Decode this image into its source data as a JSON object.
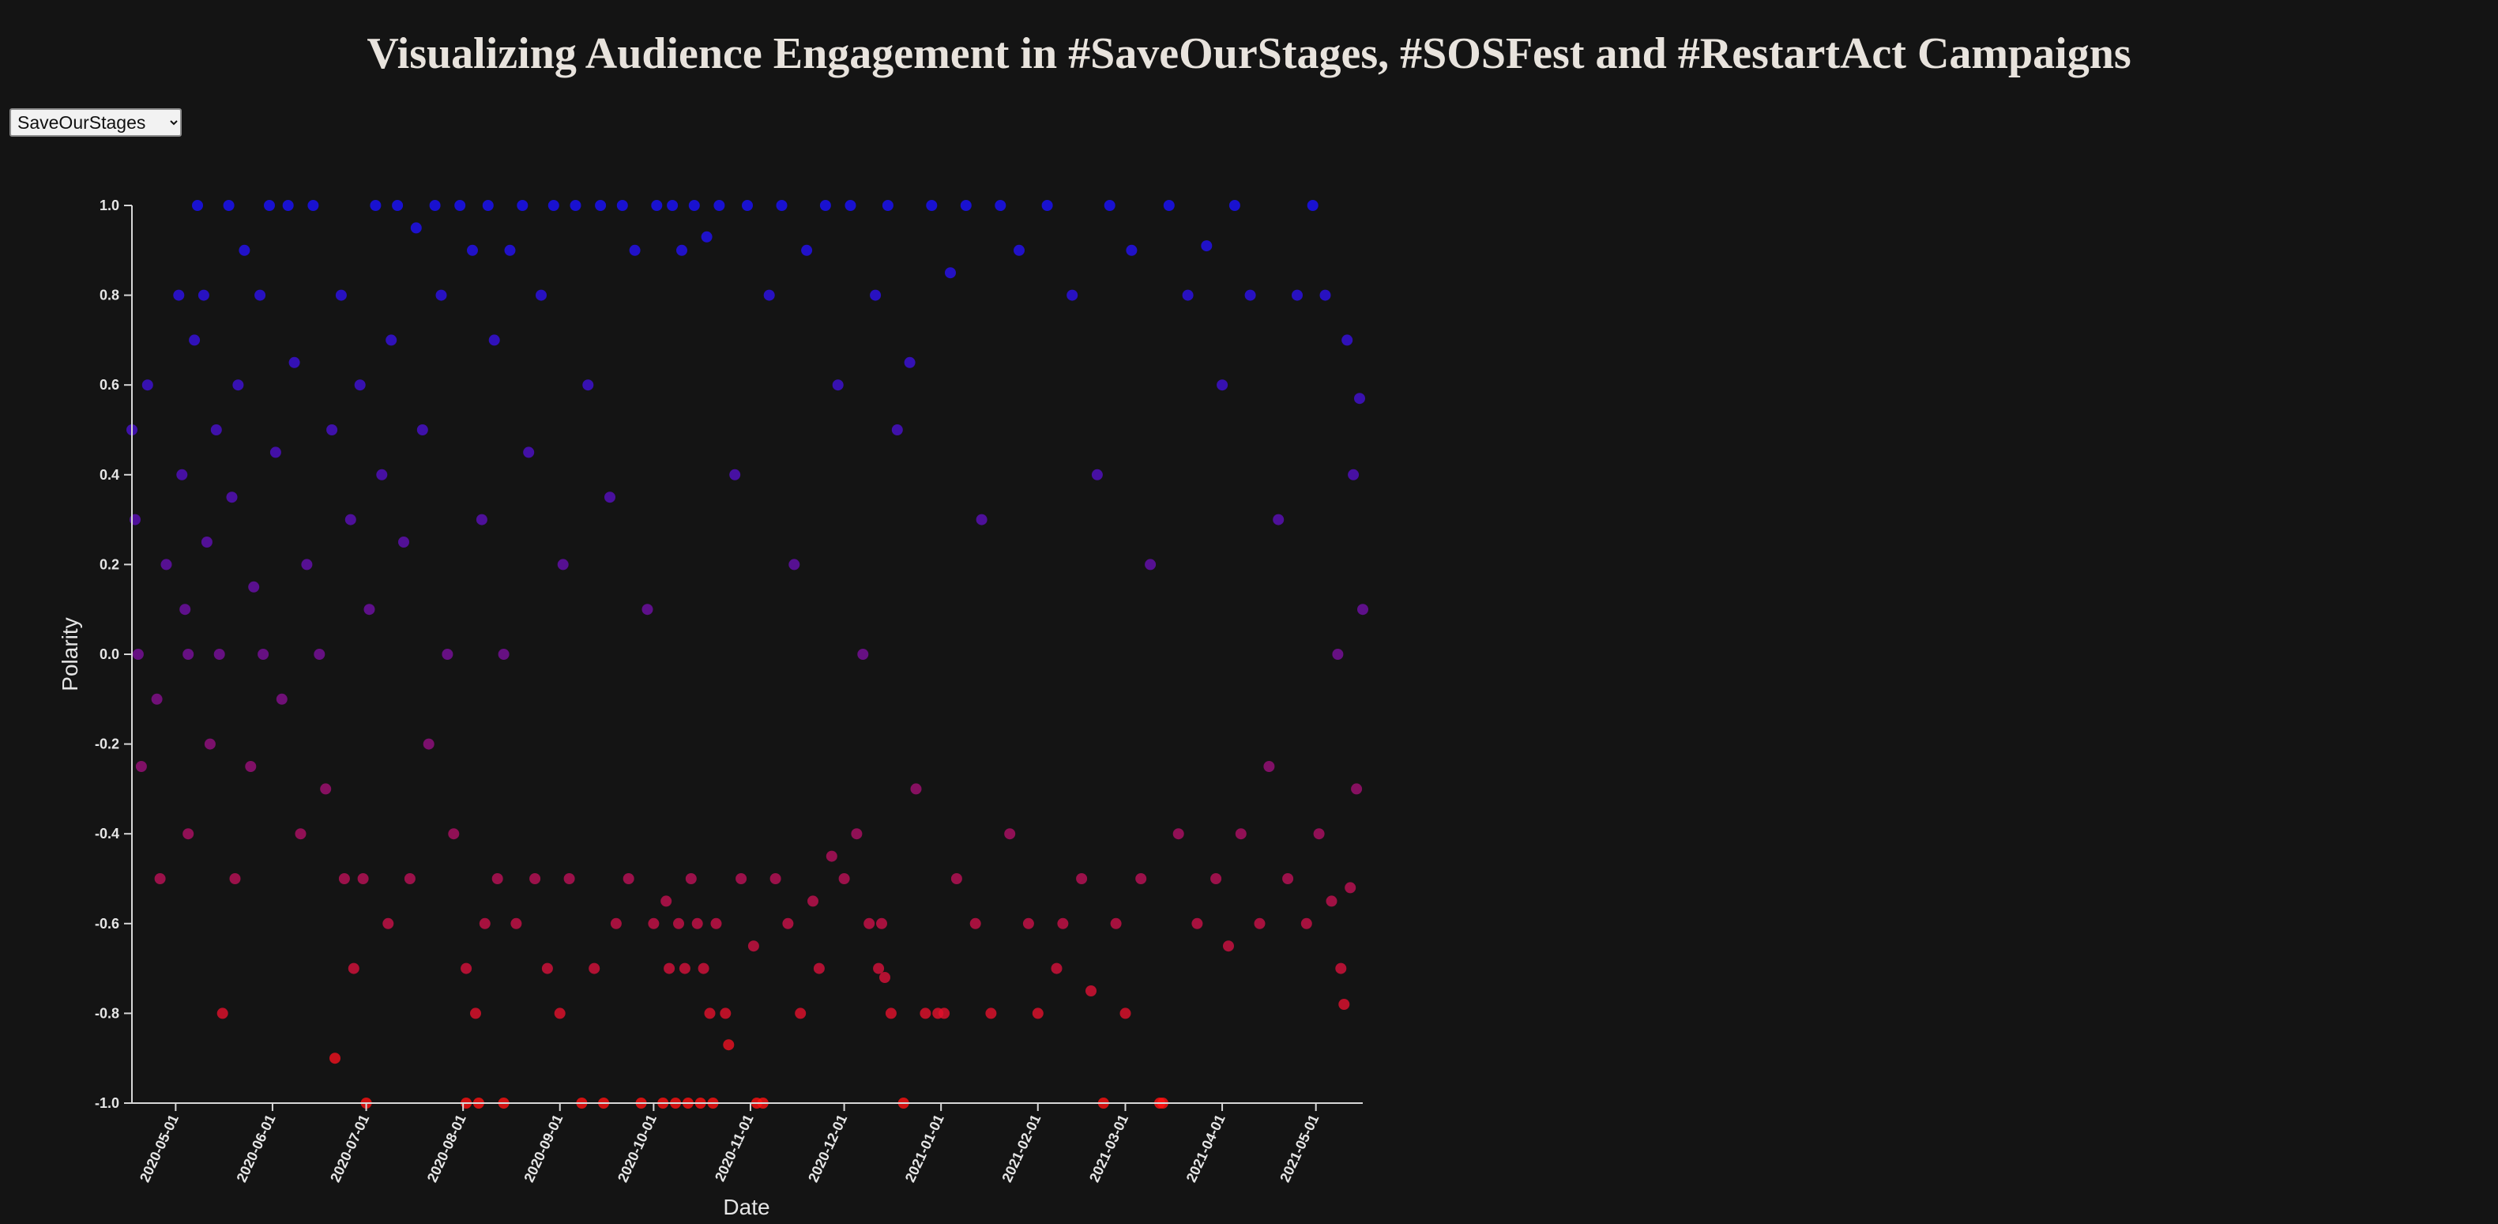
{
  "page": {
    "title": "Visualizing Audience Engagement in #SaveOurStages, #SOSFest and #RestartAct Campaigns"
  },
  "campaign_select": {
    "selected": "SaveOurStages"
  },
  "colors": {
    "background": "#141414",
    "positive_end": "#1a10ff",
    "neutral_mid": "#7a0f9e",
    "negative_end": "#ff1010"
  },
  "chart_data": {
    "type": "scatter",
    "xlabel": "Date",
    "ylabel": "Polarity",
    "x_axis_type": "date",
    "xlim": [
      "2020-04-17",
      "2021-05-16"
    ],
    "ylim": [
      -1.0,
      1.0
    ],
    "y_ticks": [
      1.0,
      0.8,
      0.6,
      0.4,
      0.2,
      0.0,
      -0.2,
      -0.4,
      -0.6,
      -0.8,
      -1.0
    ],
    "y_tick_labels": [
      "1.0",
      "0.8",
      "0.6",
      "0.4",
      "0.2",
      "0.0",
      "-0.2",
      "-0.4",
      "-0.6",
      "-0.8",
      "-1.0"
    ],
    "x_ticks": [
      "2020-05-01",
      "2020-06-01",
      "2020-07-01",
      "2020-08-01",
      "2020-09-01",
      "2020-10-01",
      "2020-11-01",
      "2020-12-01",
      "2021-01-01",
      "2021-02-01",
      "2021-03-01",
      "2021-04-01",
      "2021-05-01"
    ],
    "grid": false,
    "legend": "none",
    "color_encoding": "polarity gradient: red at -1.0, purple near 0.0, blue at 1.0",
    "point_opacity": 0.8,
    "points": [
      {
        "x": "2020-04-17",
        "y": 0.5
      },
      {
        "x": "2020-04-18",
        "y": 0.3
      },
      {
        "x": "2020-04-19",
        "y": 0.0
      },
      {
        "x": "2020-04-20",
        "y": -0.25
      },
      {
        "x": "2020-04-22",
        "y": 0.6
      },
      {
        "x": "2020-04-25",
        "y": -0.1
      },
      {
        "x": "2020-04-26",
        "y": -0.5
      },
      {
        "x": "2020-04-28",
        "y": 0.2
      },
      {
        "x": "2020-05-02",
        "y": 0.8
      },
      {
        "x": "2020-05-03",
        "y": 0.4
      },
      {
        "x": "2020-05-04",
        "y": 0.1
      },
      {
        "x": "2020-05-05",
        "y": -0.4
      },
      {
        "x": "2020-05-05",
        "y": 0.0
      },
      {
        "x": "2020-05-07",
        "y": 0.7
      },
      {
        "x": "2020-05-08",
        "y": 1.0
      },
      {
        "x": "2020-05-10",
        "y": 0.8
      },
      {
        "x": "2020-05-11",
        "y": 0.25
      },
      {
        "x": "2020-05-12",
        "y": -0.2
      },
      {
        "x": "2020-05-14",
        "y": 0.5
      },
      {
        "x": "2020-05-15",
        "y": 0.0
      },
      {
        "x": "2020-05-16",
        "y": -0.8
      },
      {
        "x": "2020-05-18",
        "y": 1.0
      },
      {
        "x": "2020-05-19",
        "y": 0.35
      },
      {
        "x": "2020-05-20",
        "y": -0.5
      },
      {
        "x": "2020-05-21",
        "y": 0.6
      },
      {
        "x": "2020-05-23",
        "y": 0.9
      },
      {
        "x": "2020-05-25",
        "y": -0.25
      },
      {
        "x": "2020-05-26",
        "y": 0.15
      },
      {
        "x": "2020-05-28",
        "y": 0.8
      },
      {
        "x": "2020-05-29",
        "y": 0.0
      },
      {
        "x": "2020-05-31",
        "y": 1.0
      },
      {
        "x": "2020-06-02",
        "y": 0.45
      },
      {
        "x": "2020-06-04",
        "y": -0.1
      },
      {
        "x": "2020-06-06",
        "y": 1.0
      },
      {
        "x": "2020-06-08",
        "y": 0.65
      },
      {
        "x": "2020-06-10",
        "y": -0.4
      },
      {
        "x": "2020-06-12",
        "y": 0.2
      },
      {
        "x": "2020-06-14",
        "y": 1.0
      },
      {
        "x": "2020-06-16",
        "y": 0.0
      },
      {
        "x": "2020-06-18",
        "y": -0.3
      },
      {
        "x": "2020-06-20",
        "y": 0.5
      },
      {
        "x": "2020-06-21",
        "y": -0.9
      },
      {
        "x": "2020-06-23",
        "y": 0.8
      },
      {
        "x": "2020-06-24",
        "y": -0.5
      },
      {
        "x": "2020-06-26",
        "y": 0.3
      },
      {
        "x": "2020-06-27",
        "y": -0.7
      },
      {
        "x": "2020-06-29",
        "y": 0.6
      },
      {
        "x": "2020-06-30",
        "y": -0.5
      },
      {
        "x": "2020-07-01",
        "y": -1.0
      },
      {
        "x": "2020-07-02",
        "y": 0.1
      },
      {
        "x": "2020-07-04",
        "y": 1.0
      },
      {
        "x": "2020-07-06",
        "y": 0.4
      },
      {
        "x": "2020-07-08",
        "y": -0.6
      },
      {
        "x": "2020-07-09",
        "y": 0.7
      },
      {
        "x": "2020-07-11",
        "y": 1.0
      },
      {
        "x": "2020-07-13",
        "y": 0.25
      },
      {
        "x": "2020-07-15",
        "y": -0.5
      },
      {
        "x": "2020-07-17",
        "y": 0.95
      },
      {
        "x": "2020-07-19",
        "y": 0.5
      },
      {
        "x": "2020-07-21",
        "y": -0.2
      },
      {
        "x": "2020-07-23",
        "y": 1.0
      },
      {
        "x": "2020-07-25",
        "y": 0.8
      },
      {
        "x": "2020-07-27",
        "y": 0.0
      },
      {
        "x": "2020-07-29",
        "y": -0.4
      },
      {
        "x": "2020-07-31",
        "y": 1.0
      },
      {
        "x": "2020-08-02",
        "y": -0.7
      },
      {
        "x": "2020-08-02",
        "y": -1.0
      },
      {
        "x": "2020-08-04",
        "y": 0.9
      },
      {
        "x": "2020-08-05",
        "y": -0.8
      },
      {
        "x": "2020-08-06",
        "y": -1.0
      },
      {
        "x": "2020-08-07",
        "y": 0.3
      },
      {
        "x": "2020-08-08",
        "y": -0.6
      },
      {
        "x": "2020-08-09",
        "y": 1.0
      },
      {
        "x": "2020-08-11",
        "y": 0.7
      },
      {
        "x": "2020-08-12",
        "y": -0.5
      },
      {
        "x": "2020-08-14",
        "y": 0.0
      },
      {
        "x": "2020-08-14",
        "y": -1.0
      },
      {
        "x": "2020-08-16",
        "y": 0.9
      },
      {
        "x": "2020-08-18",
        "y": -0.6
      },
      {
        "x": "2020-08-20",
        "y": 1.0
      },
      {
        "x": "2020-08-22",
        "y": 0.45
      },
      {
        "x": "2020-08-24",
        "y": -0.5
      },
      {
        "x": "2020-08-26",
        "y": 0.8
      },
      {
        "x": "2020-08-28",
        "y": -0.7
      },
      {
        "x": "2020-08-30",
        "y": 1.0
      },
      {
        "x": "2020-09-01",
        "y": -0.8
      },
      {
        "x": "2020-09-02",
        "y": 0.2
      },
      {
        "x": "2020-09-04",
        "y": -0.5
      },
      {
        "x": "2020-09-06",
        "y": 1.0
      },
      {
        "x": "2020-09-08",
        "y": -1.0
      },
      {
        "x": "2020-09-10",
        "y": 0.6
      },
      {
        "x": "2020-09-12",
        "y": -0.7
      },
      {
        "x": "2020-09-14",
        "y": 1.0
      },
      {
        "x": "2020-09-15",
        "y": -1.0
      },
      {
        "x": "2020-09-17",
        "y": 0.35
      },
      {
        "x": "2020-09-19",
        "y": -0.6
      },
      {
        "x": "2020-09-21",
        "y": 1.0
      },
      {
        "x": "2020-09-23",
        "y": -0.5
      },
      {
        "x": "2020-09-25",
        "y": 0.9
      },
      {
        "x": "2020-09-27",
        "y": -1.0
      },
      {
        "x": "2020-09-29",
        "y": 0.1
      },
      {
        "x": "2020-10-01",
        "y": -0.6
      },
      {
        "x": "2020-10-02",
        "y": 1.0
      },
      {
        "x": "2020-10-04",
        "y": -1.0
      },
      {
        "x": "2020-10-05",
        "y": -0.55
      },
      {
        "x": "2020-10-06",
        "y": -0.7
      },
      {
        "x": "2020-10-07",
        "y": 1.0
      },
      {
        "x": "2020-10-08",
        "y": -1.0
      },
      {
        "x": "2020-10-09",
        "y": -0.6
      },
      {
        "x": "2020-10-10",
        "y": 0.9
      },
      {
        "x": "2020-10-11",
        "y": -0.7
      },
      {
        "x": "2020-10-12",
        "y": -1.0
      },
      {
        "x": "2020-10-13",
        "y": -0.5
      },
      {
        "x": "2020-10-14",
        "y": 1.0
      },
      {
        "x": "2020-10-15",
        "y": -0.6
      },
      {
        "x": "2020-10-16",
        "y": -1.0
      },
      {
        "x": "2020-10-17",
        "y": -0.7
      },
      {
        "x": "2020-10-18",
        "y": 0.93
      },
      {
        "x": "2020-10-19",
        "y": -0.8
      },
      {
        "x": "2020-10-20",
        "y": -1.0
      },
      {
        "x": "2020-10-21",
        "y": -0.6
      },
      {
        "x": "2020-10-22",
        "y": 1.0
      },
      {
        "x": "2020-10-24",
        "y": -0.8
      },
      {
        "x": "2020-10-25",
        "y": -0.87
      },
      {
        "x": "2020-10-27",
        "y": 0.4
      },
      {
        "x": "2020-10-29",
        "y": -0.5
      },
      {
        "x": "2020-10-31",
        "y": 1.0
      },
      {
        "x": "2020-11-02",
        "y": -0.65
      },
      {
        "x": "2020-11-03",
        "y": -1.0
      },
      {
        "x": "2020-11-05",
        "y": -1.0
      },
      {
        "x": "2020-11-07",
        "y": 0.8
      },
      {
        "x": "2020-11-09",
        "y": -0.5
      },
      {
        "x": "2020-11-11",
        "y": 1.0
      },
      {
        "x": "2020-11-13",
        "y": -0.6
      },
      {
        "x": "2020-11-15",
        "y": 0.2
      },
      {
        "x": "2020-11-17",
        "y": -0.8
      },
      {
        "x": "2020-11-19",
        "y": 0.9
      },
      {
        "x": "2020-11-21",
        "y": -0.55
      },
      {
        "x": "2020-11-23",
        "y": -0.7
      },
      {
        "x": "2020-11-25",
        "y": 1.0
      },
      {
        "x": "2020-11-27",
        "y": -0.45
      },
      {
        "x": "2020-11-29",
        "y": 0.6
      },
      {
        "x": "2020-12-01",
        "y": -0.5
      },
      {
        "x": "2020-12-03",
        "y": 1.0
      },
      {
        "x": "2020-12-05",
        "y": -0.4
      },
      {
        "x": "2020-12-07",
        "y": 0.0
      },
      {
        "x": "2020-12-09",
        "y": -0.6
      },
      {
        "x": "2020-12-11",
        "y": 0.8
      },
      {
        "x": "2020-12-12",
        "y": -0.7
      },
      {
        "x": "2020-12-13",
        "y": -0.6
      },
      {
        "x": "2020-12-14",
        "y": -0.72
      },
      {
        "x": "2020-12-15",
        "y": 1.0
      },
      {
        "x": "2020-12-16",
        "y": -0.8
      },
      {
        "x": "2020-12-18",
        "y": 0.5
      },
      {
        "x": "2020-12-20",
        "y": -1.0
      },
      {
        "x": "2020-12-22",
        "y": 0.65
      },
      {
        "x": "2020-12-24",
        "y": -0.3
      },
      {
        "x": "2020-12-27",
        "y": -0.8
      },
      {
        "x": "2020-12-29",
        "y": 1.0
      },
      {
        "x": "2020-12-31",
        "y": -0.8
      },
      {
        "x": "2021-01-02",
        "y": -0.8
      },
      {
        "x": "2021-01-04",
        "y": 0.85
      },
      {
        "x": "2021-01-06",
        "y": -0.5
      },
      {
        "x": "2021-01-09",
        "y": 1.0
      },
      {
        "x": "2021-01-12",
        "y": -0.6
      },
      {
        "x": "2021-01-14",
        "y": 0.3
      },
      {
        "x": "2021-01-17",
        "y": -0.8
      },
      {
        "x": "2021-01-20",
        "y": 1.0
      },
      {
        "x": "2021-01-23",
        "y": -0.4
      },
      {
        "x": "2021-01-26",
        "y": 0.9
      },
      {
        "x": "2021-01-29",
        "y": -0.6
      },
      {
        "x": "2021-02-01",
        "y": -0.8
      },
      {
        "x": "2021-02-04",
        "y": 1.0
      },
      {
        "x": "2021-02-07",
        "y": -0.7
      },
      {
        "x": "2021-02-09",
        "y": -0.6
      },
      {
        "x": "2021-02-12",
        "y": 0.8
      },
      {
        "x": "2021-02-15",
        "y": -0.5
      },
      {
        "x": "2021-02-18",
        "y": -0.75
      },
      {
        "x": "2021-02-20",
        "y": 0.4
      },
      {
        "x": "2021-02-22",
        "y": -1.0
      },
      {
        "x": "2021-02-24",
        "y": 1.0
      },
      {
        "x": "2021-02-26",
        "y": -0.6
      },
      {
        "x": "2021-03-01",
        "y": -0.8
      },
      {
        "x": "2021-03-03",
        "y": 0.9
      },
      {
        "x": "2021-03-06",
        "y": -0.5
      },
      {
        "x": "2021-03-09",
        "y": 0.2
      },
      {
        "x": "2021-03-12",
        "y": -1.0
      },
      {
        "x": "2021-03-13",
        "y": -1.0
      },
      {
        "x": "2021-03-15",
        "y": 1.0
      },
      {
        "x": "2021-03-18",
        "y": -0.4
      },
      {
        "x": "2021-03-21",
        "y": 0.8
      },
      {
        "x": "2021-03-24",
        "y": -0.6
      },
      {
        "x": "2021-03-27",
        "y": 0.91
      },
      {
        "x": "2021-03-30",
        "y": -0.5
      },
      {
        "x": "2021-04-01",
        "y": 0.6
      },
      {
        "x": "2021-04-03",
        "y": -0.65
      },
      {
        "x": "2021-04-05",
        "y": 1.0
      },
      {
        "x": "2021-04-07",
        "y": -0.4
      },
      {
        "x": "2021-04-10",
        "y": 0.8
      },
      {
        "x": "2021-04-13",
        "y": -0.6
      },
      {
        "x": "2021-04-16",
        "y": -0.25
      },
      {
        "x": "2021-04-19",
        "y": 0.3
      },
      {
        "x": "2021-04-22",
        "y": -0.5
      },
      {
        "x": "2021-04-25",
        "y": 0.8
      },
      {
        "x": "2021-04-28",
        "y": -0.6
      },
      {
        "x": "2021-04-30",
        "y": 1.0
      },
      {
        "x": "2021-05-02",
        "y": -0.4
      },
      {
        "x": "2021-05-04",
        "y": 0.8
      },
      {
        "x": "2021-05-06",
        "y": -0.55
      },
      {
        "x": "2021-05-08",
        "y": 0.0
      },
      {
        "x": "2021-05-09",
        "y": -0.7
      },
      {
        "x": "2021-05-10",
        "y": -0.78
      },
      {
        "x": "2021-05-11",
        "y": 0.7
      },
      {
        "x": "2021-05-12",
        "y": -0.52
      },
      {
        "x": "2021-05-13",
        "y": 0.4
      },
      {
        "x": "2021-05-14",
        "y": -0.3
      },
      {
        "x": "2021-05-15",
        "y": 0.57
      },
      {
        "x": "2021-05-16",
        "y": 0.1
      }
    ]
  }
}
